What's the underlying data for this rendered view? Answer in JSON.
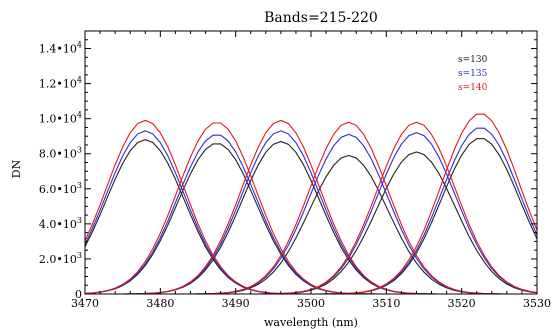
{
  "chart_data": {
    "type": "line",
    "title": "Bands=215-220",
    "xlabel": "wavelength (nm)",
    "ylabel": "DN",
    "xlim": [
      3470,
      3530
    ],
    "ylim": [
      0,
      15000
    ],
    "x_ticks": [
      3470,
      3480,
      3490,
      3500,
      3510,
      3520,
      3530
    ],
    "x_tick_labels": [
      "3470",
      "3480",
      "3490",
      "3500",
      "3510",
      "3520",
      "3530"
    ],
    "y_ticks": [
      0,
      2000,
      4000,
      6000,
      8000,
      10000,
      12000,
      14000
    ],
    "y_tick_labels": [
      {
        "base": "0",
        "exp": ""
      },
      {
        "base": "2.0•10",
        "exp": "3"
      },
      {
        "base": "4.0•10",
        "exp": "3"
      },
      {
        "base": "6.0•10",
        "exp": "3"
      },
      {
        "base": "8.0•10",
        "exp": "3"
      },
      {
        "base": "1.0•10",
        "exp": "4"
      },
      {
        "base": "1.2•10",
        "exp": "4"
      },
      {
        "base": "1.4•10",
        "exp": "4"
      }
    ],
    "legend_position": "top-right",
    "grid": false,
    "bands": [
      {
        "center": 3478.0,
        "peaks": {
          "s=130": 8800,
          "s=135": 9300,
          "s=140": 9900
        }
      },
      {
        "center": 3487.5,
        "peaks": {
          "s=130": 8600,
          "s=135": 9100,
          "s=140": 9800
        }
      },
      {
        "center": 3496.0,
        "peaks": {
          "s=130": 8700,
          "s=135": 9300,
          "s=140": 9900
        }
      },
      {
        "center": 3505.0,
        "peaks": {
          "s=130": 7900,
          "s=135": 9100,
          "s=140": 9800
        }
      },
      {
        "center": 3514.0,
        "peaks": {
          "s=130": 8100,
          "s=135": 9200,
          "s=140": 9800
        }
      },
      {
        "center": 3522.5,
        "peaks": {
          "s=130": 8900,
          "s=135": 9500,
          "s=140": 10300
        }
      }
    ],
    "series": [
      {
        "name": "s=130",
        "color": "#222222"
      },
      {
        "name": "s=135",
        "color": "#2b2bd8"
      },
      {
        "name": "s=140",
        "color": "#e01818"
      }
    ]
  }
}
